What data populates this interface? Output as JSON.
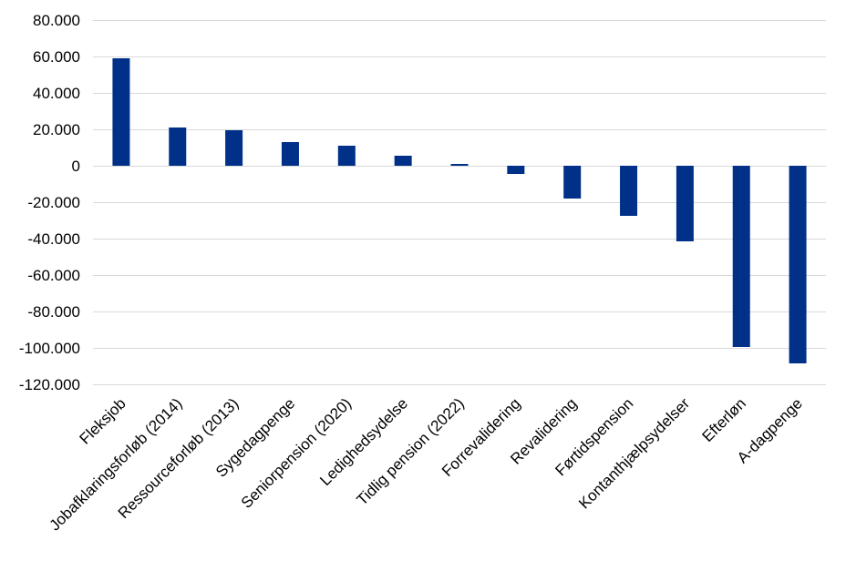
{
  "chart_data": {
    "type": "bar",
    "title": "",
    "xlabel": "",
    "ylabel": "",
    "ylim": [
      -120000,
      80000
    ],
    "ytick_step": 20000,
    "yticks": [
      80000,
      60000,
      40000,
      20000,
      0,
      -20000,
      -40000,
      -60000,
      -80000,
      -100000,
      -120000
    ],
    "ytick_labels": [
      "80.000",
      "60.000",
      "40.000",
      "20.000",
      "0",
      "-20.000",
      "-40.000",
      "-60.000",
      "-80.000",
      "-100.000",
      "-120.000"
    ],
    "grid": true,
    "legend": "none",
    "bar_color": "#003087",
    "categories": [
      "Fleksjob",
      "Jobafklaringsforløb (2014)",
      "Ressourceforløb (2013)",
      "Sygedagpenge",
      "Seniorpension (2020)",
      "Ledighedsydelse",
      "Tidlig pension (2022)",
      "Forrevalidering",
      "Revalidering",
      "Førtidspension",
      "Kontanthjælpsydelser",
      "Efterløn",
      "A-dagpenge"
    ],
    "values": [
      59000,
      21000,
      19500,
      13000,
      11000,
      5500,
      1000,
      -4500,
      -18000,
      -27500,
      -41500,
      -99500,
      -108500
    ]
  }
}
